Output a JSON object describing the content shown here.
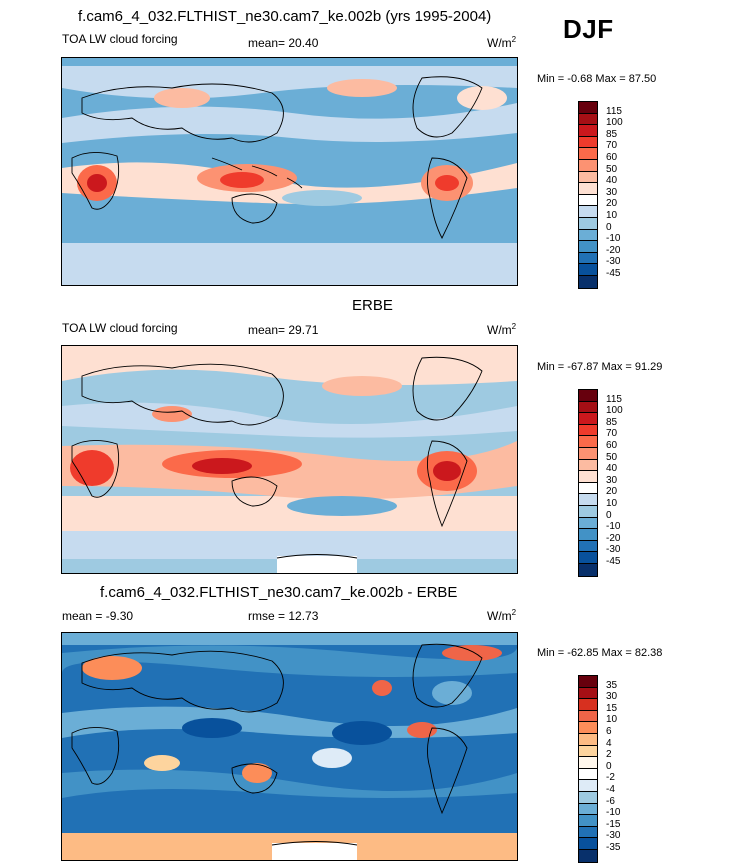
{
  "season": "DJF",
  "units": "W/m",
  "units_sup": "2",
  "colorbar_levels": [
    "115",
    "100",
    "85",
    "70",
    "60",
    "50",
    "40",
    "30",
    "20",
    "10",
    "0",
    "-10",
    "-20",
    "-30",
    "-45"
  ],
  "diff_colorbar_levels": [
    "35",
    "30",
    "15",
    "10",
    "6",
    "4",
    "2",
    "0",
    "-2",
    "-4",
    "-6",
    "-10",
    "-15",
    "-30",
    "-35"
  ],
  "colors": {
    "abs": [
      "#67000d",
      "#a50f15",
      "#cb181d",
      "#ef3b2c",
      "#fb6a4a",
      "#fc9272",
      "#fcbba1",
      "#fee0d2",
      "#ffffff",
      "#c6dbef",
      "#9ecae1",
      "#6baed6",
      "#4292c6",
      "#2171b5",
      "#08519c",
      "#08306b"
    ],
    "diff": [
      "#67000d",
      "#a50f15",
      "#d7301f",
      "#ef6548",
      "#fc8d59",
      "#fdbb84",
      "#fdd49e",
      "#fff7ec",
      "#ffffff",
      "#deebf7",
      "#9ecae1",
      "#6baed6",
      "#4292c6",
      "#2171b5",
      "#08519c",
      "#08306b"
    ]
  },
  "chart_data": [
    {
      "type": "heatmap",
      "title": "f.cam6_4_032.FLTHIST_ne30.cam7_ke.002b (yrs 1995-2004)",
      "left_label": "TOA LW cloud forcing",
      "stat_label": "mean=",
      "stat_value": "20.40",
      "min_label": "Min =",
      "min": "-0.68",
      "max_label": "Max =",
      "max": "87.50"
    },
    {
      "type": "heatmap",
      "title": "ERBE",
      "left_label": "TOA LW cloud forcing",
      "stat_label": "mean=",
      "stat_value": "29.71",
      "min_label": "Min =",
      "min": "-67.87",
      "max_label": "Max =",
      "max": "91.29"
    },
    {
      "type": "heatmap",
      "title": "f.cam6_4_032.FLTHIST_ne30.cam7_ke.002b - ERBE",
      "left_label": "mean =",
      "left_value": "-9.30",
      "stat_label": "rmse =",
      "stat_value": "12.73",
      "min_label": "Min =",
      "min": "-62.85",
      "max_label": "Max =",
      "max": "82.38"
    }
  ]
}
